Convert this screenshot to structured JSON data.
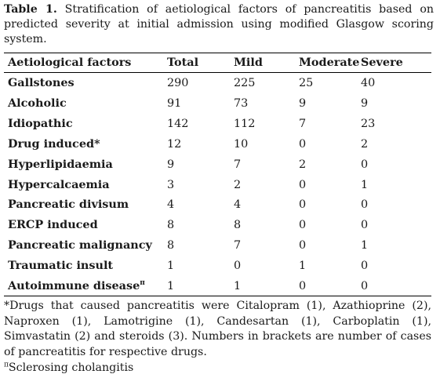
{
  "caption": {
    "label": "Table 1.",
    "text": "Stratification of aetiological factors of pancreatitis based on predicted severity at initial admission using modified Glasgow scoring system."
  },
  "table": {
    "headers": [
      "Aetiological factors",
      "Total",
      "Mild",
      "Moderate",
      "Severe"
    ],
    "rows": [
      {
        "factor": "Gallstones",
        "marker": "",
        "total": "290",
        "mild": "225",
        "moderate": "25",
        "severe": "40"
      },
      {
        "factor": "Alcoholic",
        "marker": "",
        "total": "91",
        "mild": "73",
        "moderate": "9",
        "severe": "9"
      },
      {
        "factor": "Idiopathic",
        "marker": "",
        "total": "142",
        "mild": "112",
        "moderate": "7",
        "severe": "23"
      },
      {
        "factor": "Drug induced",
        "marker": "*",
        "total": "12",
        "mild": "10",
        "moderate": "0",
        "severe": "2"
      },
      {
        "factor": "Hyperlipidaemia",
        "marker": "",
        "total": "9",
        "mild": "7",
        "moderate": "2",
        "severe": "0"
      },
      {
        "factor": "Hypercalcaemia",
        "marker": "",
        "total": "3",
        "mild": "2",
        "moderate": "0",
        "severe": "1"
      },
      {
        "factor": "Pancreatic divisum",
        "marker": "",
        "total": "4",
        "mild": "4",
        "moderate": "0",
        "severe": "0"
      },
      {
        "factor": "ERCP induced",
        "marker": "",
        "total": "8",
        "mild": "8",
        "moderate": "0",
        "severe": "0"
      },
      {
        "factor": "Pancreatic malignancy",
        "marker": "",
        "total": "8",
        "mild": "7",
        "moderate": "0",
        "severe": "1"
      },
      {
        "factor": "Traumatic insult",
        "marker": "",
        "total": "1",
        "mild": "0",
        "moderate": "1",
        "severe": "0"
      },
      {
        "factor": "Autoimmune disease",
        "marker": "π",
        "total": "1",
        "mild": "1",
        "moderate": "0",
        "severe": "0"
      }
    ]
  },
  "footnotes": {
    "drugs_marker": "*",
    "drugs": "Drugs that caused pancreatitis were Citalopram (1), Azathioprine (2), Naproxen (1), Lamotrigine (1), Candesartan (1), Carboplatin (1), Simvastatin (2) and steroids (3). Numbers in brackets are number of cases of pancreatitis for respective drugs.",
    "autoimmune_marker": "π",
    "autoimmune": "Sclerosing cholangitis"
  }
}
